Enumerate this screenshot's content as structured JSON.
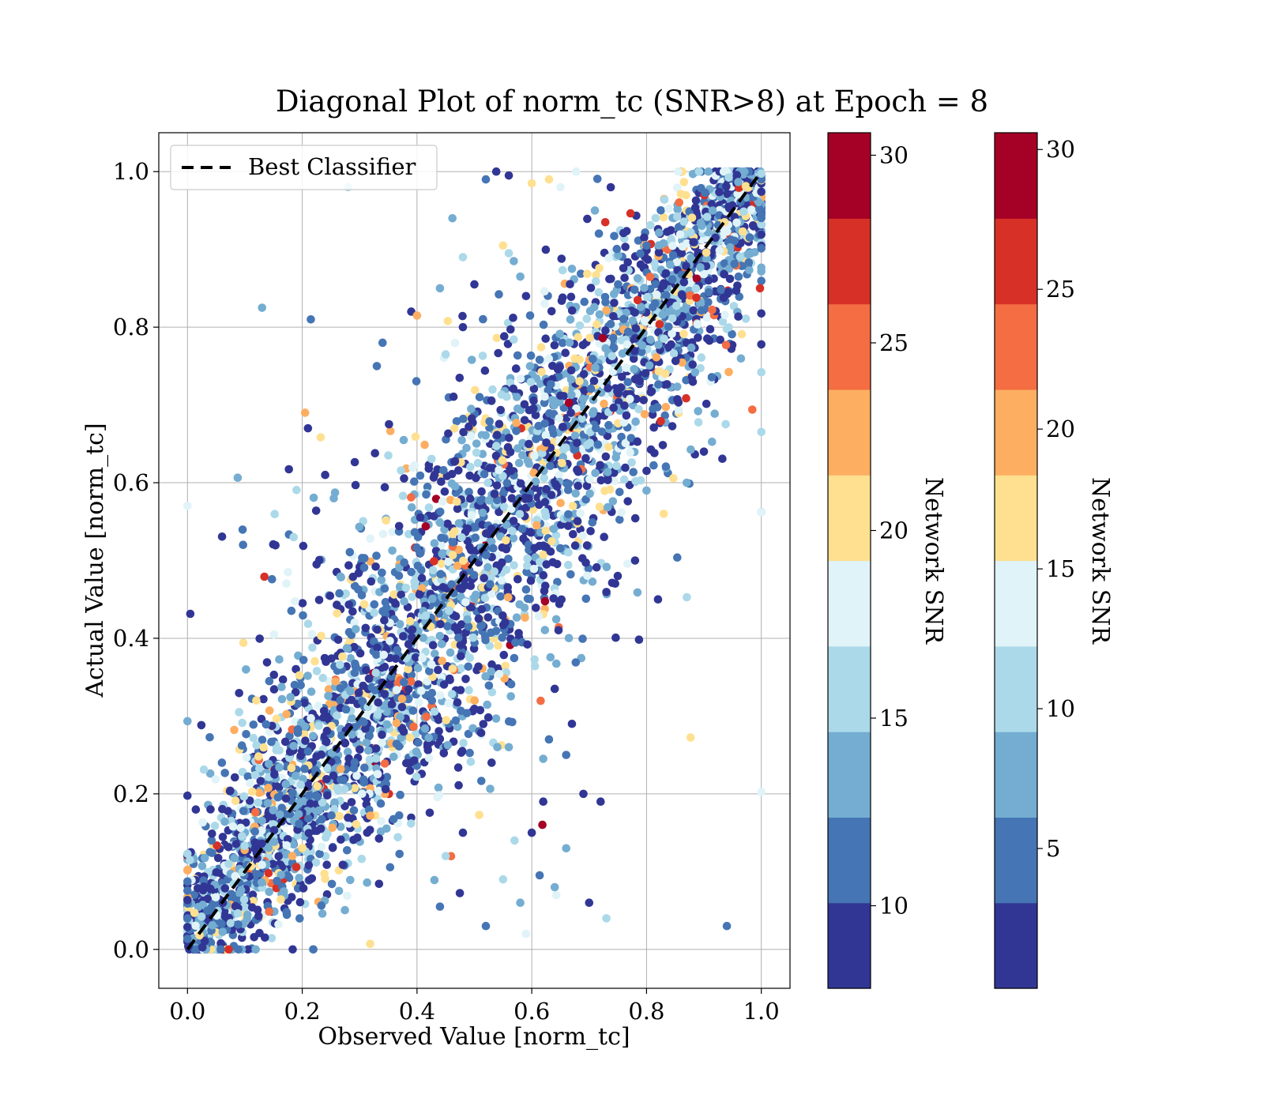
{
  "chart_data": {
    "type": "scatter",
    "title": "Diagonal Plot of norm_tc (SNR>8) at Epoch = 8",
    "xlabel": "Observed Value [norm_tc]",
    "ylabel": "Actual Value [norm_tc]",
    "xlim": [
      -0.05,
      1.05
    ],
    "ylim": [
      -0.05,
      1.05
    ],
    "x_ticks": [
      "0.0",
      "0.2",
      "0.4",
      "0.6",
      "0.8",
      "1.0"
    ],
    "y_ticks": [
      "0.0",
      "0.2",
      "0.4",
      "0.6",
      "0.8",
      "1.0"
    ],
    "grid": true,
    "legend": {
      "position": "top-left",
      "entries": [
        "Best Classifier"
      ]
    },
    "reference_line": {
      "name": "Best Classifier",
      "x": [
        0,
        1
      ],
      "y": [
        0,
        1
      ],
      "style": "dashed",
      "color": "#000000"
    },
    "point_density": "thousands of points concentrated along the diagonal within roughly ±0.12, with sparse outliers",
    "point_colors": [
      "#313695",
      "#4575b4",
      "#74add1",
      "#abd9e9",
      "#e0f3f8",
      "#fee090",
      "#fdae61",
      "#f46d43",
      "#d73027",
      "#a50026"
    ],
    "outliers": [
      [
        0.28,
        0.98
      ],
      [
        0.13,
        0.825
      ],
      [
        0.215,
        0.81
      ],
      [
        0.205,
        0.69
      ],
      [
        0.21,
        0.67
      ],
      [
        0.24,
        0.61
      ],
      [
        0.255,
        0.58
      ],
      [
        0.185,
        0.53
      ],
      [
        0.175,
        0.485
      ],
      [
        0.225,
        0.495
      ],
      [
        0.33,
        0.75
      ],
      [
        0.34,
        0.78
      ],
      [
        0.39,
        0.82
      ],
      [
        0.4,
        0.815
      ],
      [
        0.44,
        0.85
      ],
      [
        0.45,
        0.765
      ],
      [
        0.48,
        0.8
      ],
      [
        0.48,
        0.89
      ],
      [
        0.5,
        0.855
      ],
      [
        0.55,
        0.905
      ],
      [
        0.56,
        0.895
      ],
      [
        0.58,
        0.865
      ],
      [
        0.59,
        0.84
      ],
      [
        0.52,
        0.99
      ],
      [
        0.56,
        0.995
      ],
      [
        0.6,
        0.985
      ],
      [
        0.63,
        0.99
      ],
      [
        0.65,
        0.98
      ],
      [
        0.71,
        0.95
      ],
      [
        0.67,
        0.875
      ],
      [
        0.12,
        0.32
      ],
      [
        0.09,
        0.305
      ],
      [
        0.06,
        0.24
      ],
      [
        0.54,
        0.26
      ],
      [
        0.53,
        0.24
      ],
      [
        0.56,
        0.26
      ],
      [
        0.62,
        0.245
      ],
      [
        0.63,
        0.27
      ],
      [
        0.64,
        0.335
      ],
      [
        0.66,
        0.25
      ],
      [
        0.67,
        0.29
      ],
      [
        0.69,
        0.2
      ],
      [
        0.72,
        0.19
      ],
      [
        0.62,
        0.19
      ],
      [
        0.6,
        0.15
      ],
      [
        0.57,
        0.14
      ],
      [
        0.66,
        0.13
      ],
      [
        0.64,
        0.08
      ],
      [
        0.7,
        0.06
      ],
      [
        0.73,
        0.04
      ],
      [
        0.48,
        0.15
      ],
      [
        0.45,
        0.12
      ],
      [
        0.44,
        0.055
      ],
      [
        0.55,
        0.09
      ],
      [
        0.58,
        0.06
      ],
      [
        0.52,
        0.03
      ],
      [
        0.59,
        0.02
      ],
      [
        0.94,
        0.03
      ],
      [
        0.78,
        0.5
      ],
      [
        0.82,
        0.45
      ],
      [
        0.83,
        0.56
      ],
      [
        0.87,
        0.6
      ],
      [
        0.9,
        0.64
      ],
      [
        0.8,
        0.59
      ]
    ],
    "colorbars": [
      {
        "label": "Network SNR",
        "ticks": [
          "10",
          "15",
          "20",
          "25",
          "30"
        ],
        "range": [
          7.8,
          30.6
        ],
        "tick_values": [
          10,
          15,
          20,
          25,
          30
        ],
        "levels": 10
      },
      {
        "label": "Network SNR",
        "ticks": [
          "5",
          "10",
          "15",
          "20",
          "25",
          "30"
        ],
        "range": [
          0,
          30.6
        ],
        "tick_values": [
          5,
          10,
          15,
          20,
          25,
          30
        ],
        "levels": 10
      }
    ]
  }
}
